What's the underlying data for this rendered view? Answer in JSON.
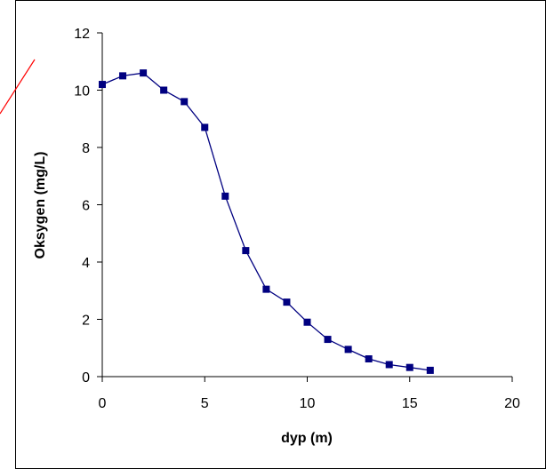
{
  "chart_data": {
    "type": "line",
    "title": "",
    "xlabel": "dyp (m)",
    "ylabel": "Oksygen (mg/L)",
    "xlim": [
      0,
      20
    ],
    "ylim": [
      0,
      12
    ],
    "xticks": [
      0,
      5,
      10,
      15,
      20
    ],
    "yticks": [
      0,
      2,
      4,
      6,
      8,
      10,
      12
    ],
    "grid": false,
    "legend": "none",
    "series": [
      {
        "color": "#000080",
        "marker": "square",
        "x": [
          0,
          1,
          2,
          3,
          4,
          5,
          6,
          7,
          8,
          9,
          10,
          11,
          12,
          13,
          14,
          15,
          16
        ],
        "y": [
          10.2,
          10.5,
          10.6,
          10.0,
          9.6,
          8.7,
          6.3,
          4.4,
          3.05,
          2.6,
          1.9,
          1.3,
          0.95,
          0.62,
          0.42,
          0.32,
          0.22
        ]
      }
    ]
  }
}
